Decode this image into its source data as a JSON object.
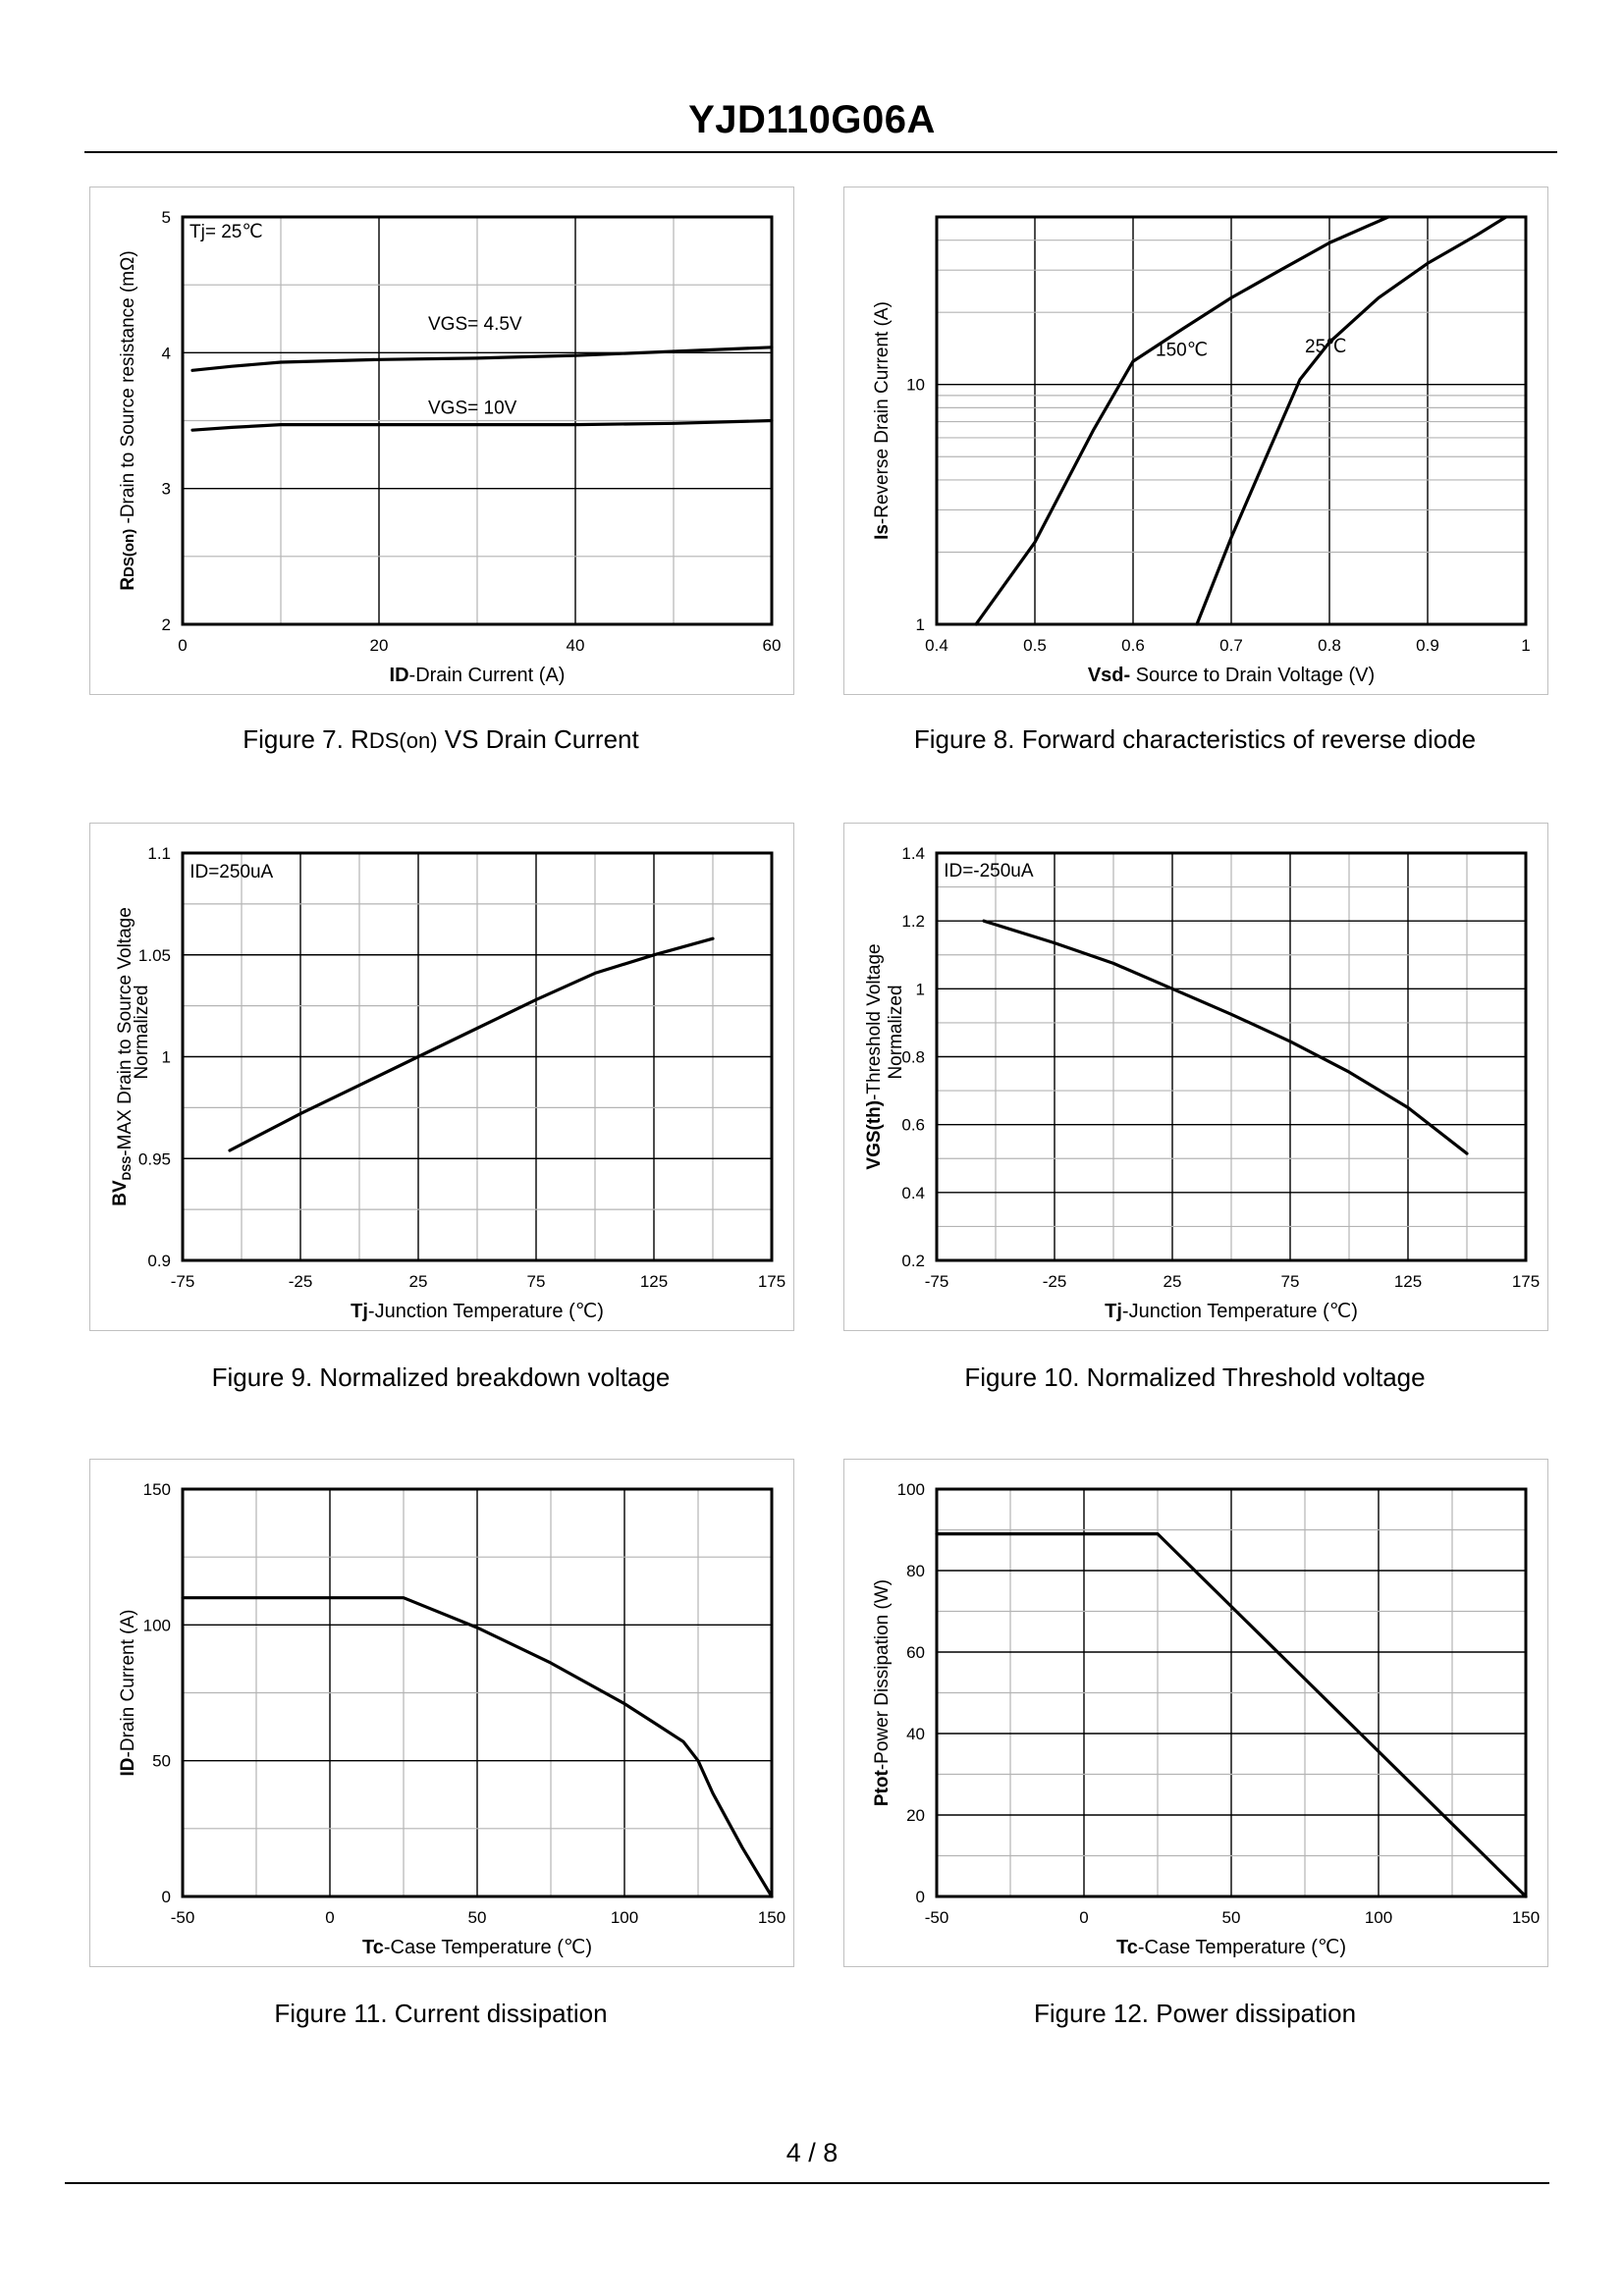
{
  "document": {
    "title": "YJD110G06A",
    "page": "4 / 8"
  },
  "captions": [
    {
      "prefix": "Figure 7.  R",
      "sub": "DS(on)",
      "suffix": " VS Drain Current"
    },
    {
      "prefix": "Figure 8.  Forward characteristics of reverse diode",
      "sub": "",
      "suffix": ""
    },
    {
      "prefix": "Figure 9.  Normalized breakdown voltage",
      "sub": "",
      "suffix": ""
    },
    {
      "prefix": "Figure 10.  Normalized Threshold voltage",
      "sub": "",
      "suffix": ""
    },
    {
      "prefix": "Figure 11.  Current dissipation",
      "sub": "",
      "suffix": ""
    },
    {
      "prefix": "Figure 12.  Power dissipation",
      "sub": "",
      "suffix": ""
    }
  ],
  "chart_data": [
    {
      "id": "fig7",
      "type": "line",
      "title": "Figure 7. RDS(on) VS Drain Current",
      "xlabel": [
        {
          "t": "ID",
          "b": true
        },
        {
          "t": "-Drain Current (A)"
        }
      ],
      "ylabel": [
        {
          "t": "R",
          "b": true
        },
        {
          "t": "DS(on)",
          "b": true,
          "small": true
        },
        {
          "t": " -Drain to Source resistance (mΩ)"
        }
      ],
      "xlim": [
        0,
        60
      ],
      "ylim": [
        2,
        5
      ],
      "xticks": [
        0,
        20,
        40,
        60
      ],
      "yticks": [
        2,
        3,
        4,
        5
      ],
      "xgrid": [
        0,
        10,
        20,
        30,
        40,
        50,
        60
      ],
      "ygrid": [
        2,
        2.5,
        3,
        3.5,
        4,
        4.5,
        5
      ],
      "annotations": [
        {
          "text": "Tj= 25℃",
          "x": 0.7,
          "y": 4.85
        },
        {
          "text": "VGS= 4.5V",
          "x": 25,
          "y": 4.17
        },
        {
          "text": "VGS= 10V",
          "x": 25,
          "y": 3.55
        }
      ],
      "series": [
        {
          "name": "VGS= 4.5V",
          "x": [
            1,
            5,
            10,
            20,
            30,
            40,
            50,
            60
          ],
          "y": [
            3.87,
            3.9,
            3.93,
            3.95,
            3.96,
            3.98,
            4.01,
            4.04
          ]
        },
        {
          "name": "VGS= 10V",
          "x": [
            1,
            5,
            10,
            20,
            30,
            40,
            50,
            60
          ],
          "y": [
            3.43,
            3.45,
            3.47,
            3.47,
            3.47,
            3.47,
            3.48,
            3.5
          ]
        }
      ]
    },
    {
      "id": "fig8",
      "type": "line",
      "title": "Figure 8. Forward characteristics of reverse diode",
      "xlabel": [
        {
          "t": "Vsd-",
          "b": true
        },
        {
          "t": " Source to Drain Voltage (V)"
        }
      ],
      "ylabel": [
        {
          "t": "Is",
          "b": true
        },
        {
          "t": "-Reverse  Drain Current (A)"
        }
      ],
      "xlim": [
        0.4,
        1.0
      ],
      "ylim": [
        1,
        50
      ],
      "yscale": "log",
      "xticks": [
        0.4,
        0.5,
        0.6,
        0.7,
        0.8,
        0.9,
        1.0
      ],
      "xticklabels": [
        "0.4",
        "0.5",
        "0.6",
        "0.7",
        "0.8",
        "0.9",
        "1"
      ],
      "yticks": [
        1,
        10
      ],
      "xgrid": [
        0.4,
        0.5,
        0.6,
        0.7,
        0.8,
        0.9,
        1.0
      ],
      "ygrid": [
        1,
        2,
        3,
        4,
        5,
        6,
        7,
        8,
        9,
        10,
        20,
        30,
        40,
        50
      ],
      "majorYGrid": [
        10
      ],
      "annotations": [
        {
          "text": "150℃",
          "x": 0.623,
          "y": 13.2
        },
        {
          "text": "25℃",
          "x": 0.775,
          "y": 13.6
        }
      ],
      "series": [
        {
          "name": "150℃",
          "x": [
            0.44,
            0.5,
            0.56,
            0.6,
            0.65,
            0.7,
            0.75,
            0.8,
            0.86
          ],
          "y": [
            1,
            2.2,
            6.5,
            12.5,
            17,
            23,
            30,
            39,
            50
          ]
        },
        {
          "name": "25℃",
          "x": [
            0.665,
            0.7,
            0.74,
            0.77,
            0.8,
            0.85,
            0.9,
            0.95,
            0.98
          ],
          "y": [
            1,
            2.3,
            5.5,
            10.5,
            15,
            23,
            32,
            42,
            50
          ]
        }
      ]
    },
    {
      "id": "fig9",
      "type": "line",
      "title": "Figure 9. Normalized breakdown voltage",
      "xlabel": [
        {
          "t": "Tj",
          "b": true
        },
        {
          "t": "-Junction  Temperature (℃)"
        }
      ],
      "ylabel": [
        {
          "t": "BV",
          "b": true
        },
        {
          "t": "DSS",
          "b": true,
          "sub": true
        },
        {
          "t": "-MAX Drain to Source Voltage"
        }
      ],
      "ylabel2": "Normalized",
      "xlim": [
        -75,
        175
      ],
      "ylim": [
        0.9,
        1.1
      ],
      "xticks": [
        -75,
        -25,
        25,
        75,
        125,
        175
      ],
      "yticks": [
        0.9,
        0.95,
        1,
        1.05,
        1.1
      ],
      "xgrid": [
        -75,
        -50,
        -25,
        0,
        25,
        50,
        75,
        100,
        125,
        150,
        175
      ],
      "ygrid": [
        0.9,
        0.925,
        0.95,
        0.975,
        1,
        1.025,
        1.05,
        1.075,
        1.1
      ],
      "annotations": [
        {
          "text": "ID=250uA",
          "x": -72,
          "y": 1.088
        }
      ],
      "series": [
        {
          "name": "BVDSS",
          "x": [
            -55,
            -25,
            0,
            25,
            50,
            75,
            100,
            125,
            150
          ],
          "y": [
            0.954,
            0.972,
            0.986,
            1.0,
            1.014,
            1.028,
            1.041,
            1.05,
            1.058
          ]
        }
      ]
    },
    {
      "id": "fig10",
      "type": "line",
      "title": "Figure 10. Normalized Threshold voltage",
      "xlabel": [
        {
          "t": "Tj",
          "b": true
        },
        {
          "t": "-Junction  Temperature (℃)"
        }
      ],
      "ylabel": [
        {
          "t": "VGS(th)",
          "b": true
        },
        {
          "t": "-Threshold  Voltage"
        }
      ],
      "ylabel2": "Normalized",
      "xlim": [
        -75,
        175
      ],
      "ylim": [
        0.2,
        1.4
      ],
      "xticks": [
        -75,
        -25,
        25,
        75,
        125,
        175
      ],
      "yticks": [
        0.2,
        0.4,
        0.6,
        0.8,
        1,
        1.2,
        1.4
      ],
      "xgrid": [
        -75,
        -50,
        -25,
        0,
        25,
        50,
        75,
        100,
        125,
        150,
        175
      ],
      "ygrid": [
        0.2,
        0.3,
        0.4,
        0.5,
        0.6,
        0.7,
        0.8,
        0.9,
        1.0,
        1.1,
        1.2,
        1.3,
        1.4
      ],
      "annotations": [
        {
          "text": "ID=-250uA",
          "x": -72,
          "y": 1.33
        }
      ],
      "series": [
        {
          "name": "VGS(th)",
          "x": [
            -55,
            -25,
            0,
            25,
            50,
            75,
            100,
            125,
            150
          ],
          "y": [
            1.2,
            1.135,
            1.075,
            1.0,
            0.925,
            0.845,
            0.755,
            0.65,
            0.515
          ]
        }
      ]
    },
    {
      "id": "fig11",
      "type": "line",
      "title": "Figure 11. Current dissipation",
      "xlabel": [
        {
          "t": "Tc",
          "b": true
        },
        {
          "t": "-Case Temperature (℃)"
        }
      ],
      "ylabel": [
        {
          "t": "ID",
          "b": true
        },
        {
          "t": "-Drain Current (A)"
        }
      ],
      "xlim": [
        -50,
        150
      ],
      "ylim": [
        0,
        150
      ],
      "xticks": [
        -50,
        0,
        50,
        100,
        150
      ],
      "yticks": [
        0,
        50,
        100,
        150
      ],
      "xgrid": [
        -50,
        -25,
        0,
        25,
        50,
        75,
        100,
        125,
        150
      ],
      "ygrid": [
        0,
        25,
        50,
        75,
        100,
        125,
        150
      ],
      "annotations": [],
      "series": [
        {
          "name": "ID",
          "x": [
            -50,
            25,
            50,
            75,
            100,
            110,
            120,
            125,
            130,
            140,
            150
          ],
          "y": [
            110,
            110,
            99,
            86,
            71,
            64,
            57,
            50,
            38,
            18,
            0
          ]
        }
      ]
    },
    {
      "id": "fig12",
      "type": "line",
      "title": "Figure 12. Power dissipation",
      "xlabel": [
        {
          "t": "Tc",
          "b": true
        },
        {
          "t": "-Case Temperature (℃)"
        }
      ],
      "ylabel": [
        {
          "t": "Ptot",
          "b": true
        },
        {
          "t": "-Power Dissipation (W)"
        }
      ],
      "xlim": [
        -50,
        150
      ],
      "ylim": [
        0,
        100
      ],
      "xticks": [
        -50,
        0,
        50,
        100,
        150
      ],
      "yticks": [
        0,
        20,
        40,
        60,
        80,
        100
      ],
      "xgrid": [
        -50,
        -25,
        0,
        25,
        50,
        75,
        100,
        125,
        150
      ],
      "ygrid": [
        0,
        10,
        20,
        30,
        40,
        50,
        60,
        70,
        80,
        90,
        100
      ],
      "annotations": [],
      "series": [
        {
          "name": "Ptot",
          "x": [
            -50,
            25,
            150
          ],
          "y": [
            89,
            89,
            0
          ]
        }
      ]
    }
  ]
}
